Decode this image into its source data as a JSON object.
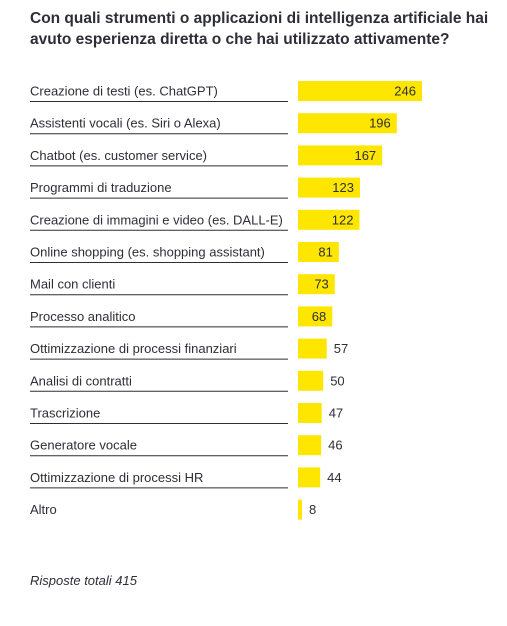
{
  "title": "Con quali strumenti o applicazioni di intelligenza artificiale hai avuto esperienza diretta o che hai utilizzato attivamente?",
  "footnote": "Risposte totali 415",
  "colors": {
    "bar": "#ffe600",
    "text": "#2e2e38",
    "divider": "#2e2e38"
  },
  "chart_data": {
    "type": "bar",
    "orientation": "horizontal",
    "categories": [
      "Creazione di testi (es. ChatGPT)",
      "Assistenti vocali (es. Siri o Alexa)",
      "Chatbot (es. customer service)",
      "Programmi di traduzione",
      "Creazione di immagini e video (es. DALL-E)",
      "Online shopping (es. shopping assistant)",
      "Mail con clienti",
      "Processo analitico",
      "Ottimizzazione di processi finanziari",
      "Analisi di contratti",
      "Trascrizione",
      "Generatore vocale",
      "Ottimizzazione di processi HR",
      "Altro"
    ],
    "values": [
      246,
      196,
      167,
      123,
      122,
      81,
      73,
      68,
      57,
      50,
      47,
      46,
      44,
      8
    ],
    "data_labels": true,
    "grid": false,
    "legend": "none"
  }
}
